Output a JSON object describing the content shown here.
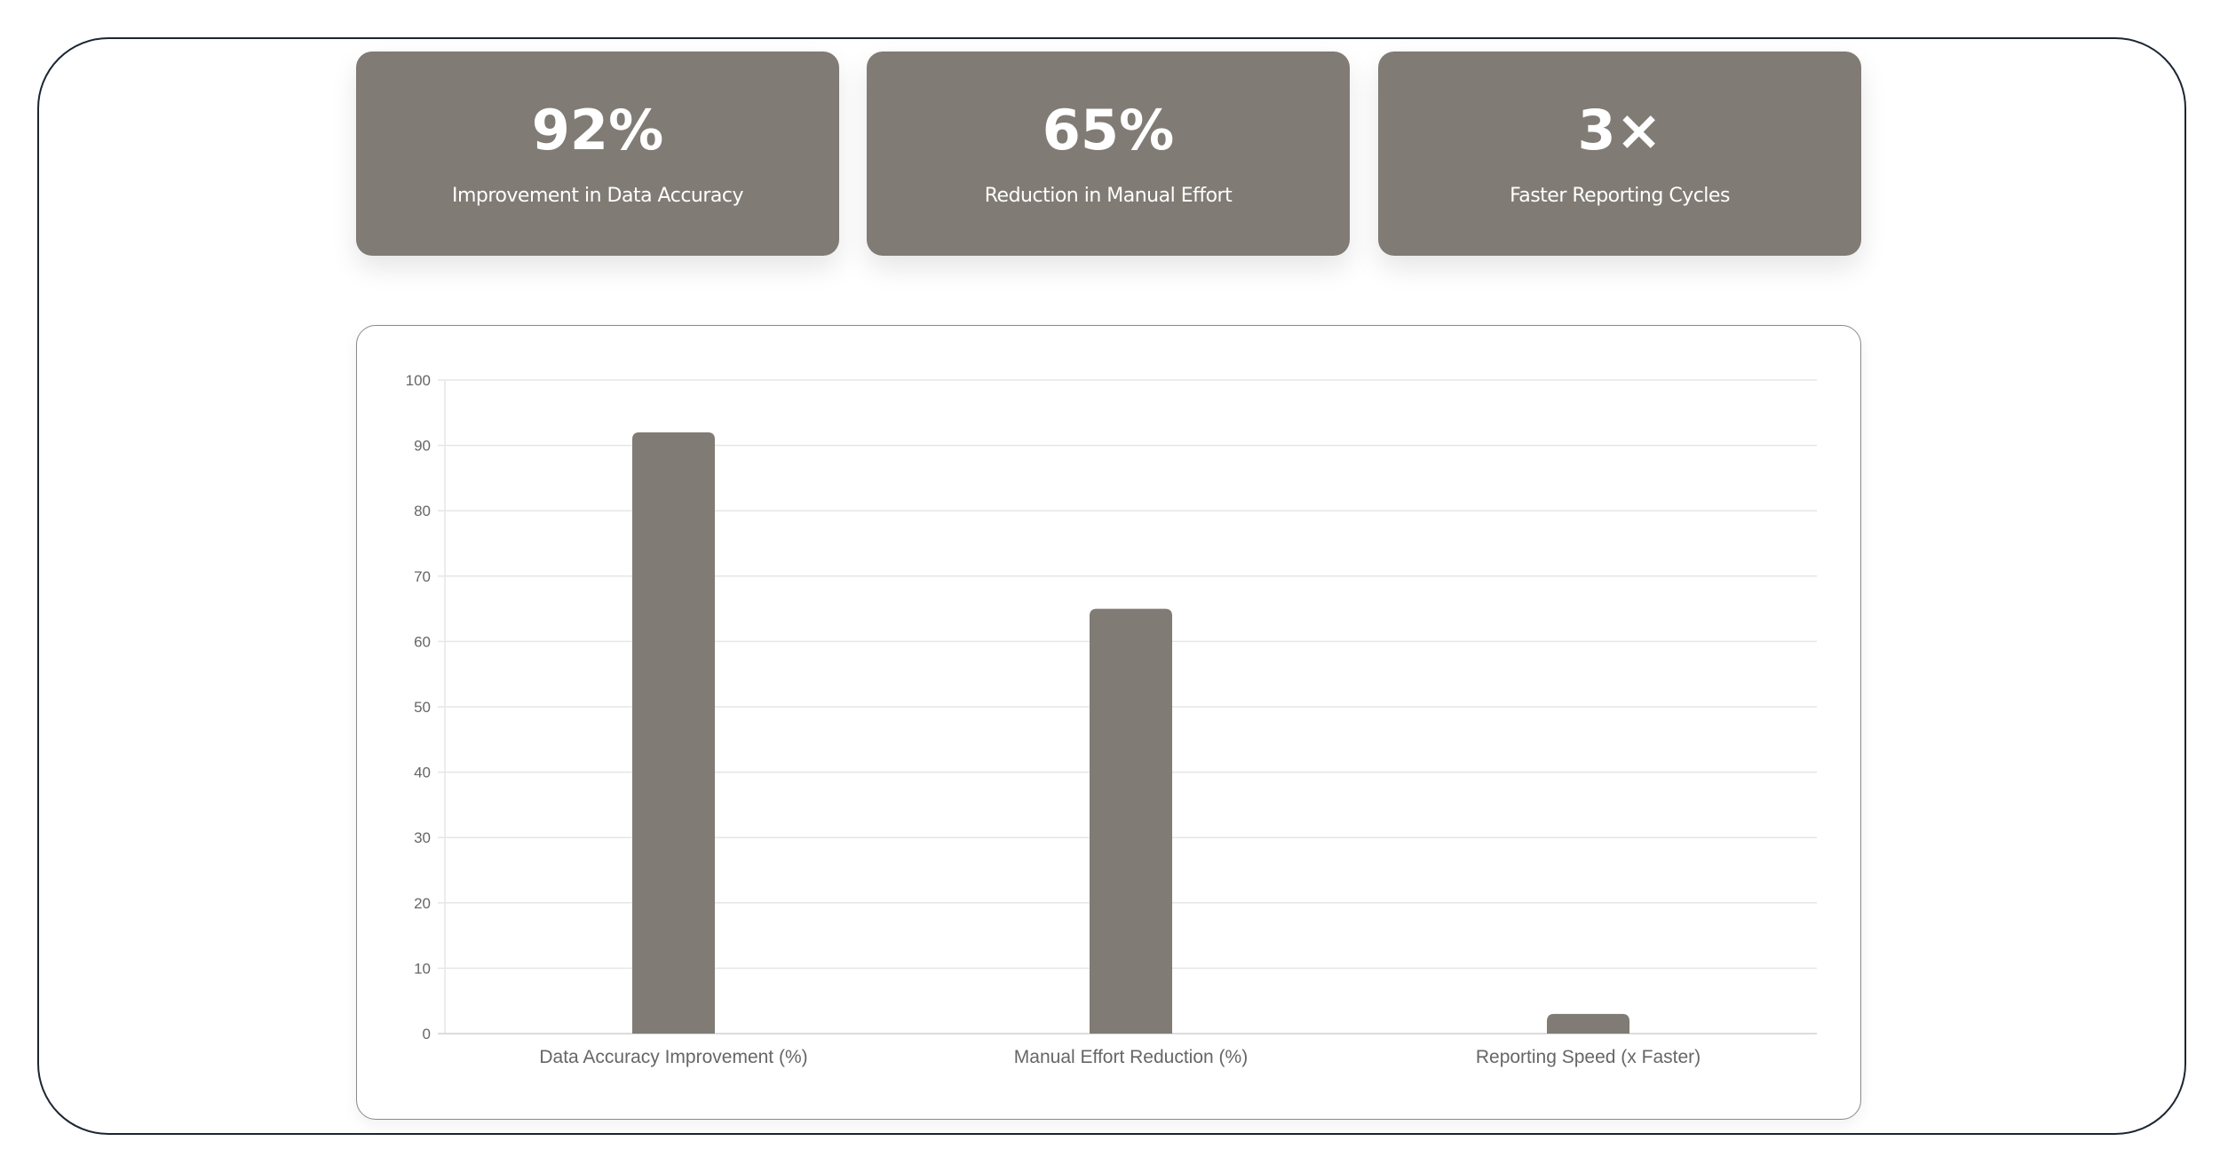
{
  "stats": [
    {
      "value": "92%",
      "label": "Improvement in Data Accuracy"
    },
    {
      "value": "65%",
      "label": "Reduction in Manual Effort"
    },
    {
      "value": "3×",
      "label": "Faster Reporting Cycles"
    }
  ],
  "colors": {
    "card": "#807b74",
    "bar": "#807b74",
    "grid": "#e6e6e6",
    "text": "#666666"
  },
  "chart_data": {
    "type": "bar",
    "categories": [
      "Data Accuracy Improvement (%)",
      "Manual Effort Reduction (%)",
      "Reporting Speed (x Faster)"
    ],
    "values": [
      92,
      65,
      3
    ],
    "title": "",
    "xlabel": "",
    "ylabel": "",
    "ylim": [
      0,
      100
    ],
    "yticks": [
      0,
      10,
      20,
      30,
      40,
      50,
      60,
      70,
      80,
      90,
      100
    ],
    "grid": true,
    "legend": "none"
  }
}
